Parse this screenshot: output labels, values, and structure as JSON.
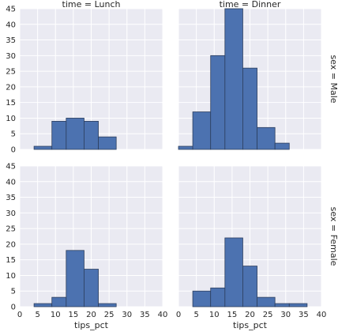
{
  "chart_data": {
    "type": "bar",
    "subtype": "histogram-facet-grid",
    "xlabel": "tips_pct",
    "xlim": [
      0,
      40
    ],
    "ylim": [
      0,
      45
    ],
    "xticks": [
      0,
      5,
      10,
      15,
      20,
      25,
      30,
      35,
      40
    ],
    "yticks": [
      0,
      5,
      10,
      15,
      20,
      25,
      30,
      35,
      40,
      45
    ],
    "col_titles": [
      "time = Lunch",
      "time = Dinner"
    ],
    "row_titles": [
      "sex = Male",
      "sex = Female"
    ],
    "bar_color": "#4c72b0",
    "background_color": "#eaeaf2",
    "grid": true,
    "panels": [
      {
        "time": "Lunch",
        "sex": "Male",
        "bins": [
          {
            "x0": 4,
            "x1": 9,
            "count": 1
          },
          {
            "x0": 9,
            "x1": 13,
            "count": 9
          },
          {
            "x0": 13,
            "x1": 18,
            "count": 10
          },
          {
            "x0": 18,
            "x1": 22,
            "count": 9
          },
          {
            "x0": 22,
            "x1": 27,
            "count": 4
          }
        ]
      },
      {
        "time": "Dinner",
        "sex": "Male",
        "bins": [
          {
            "x0": 0,
            "x1": 4,
            "count": 1
          },
          {
            "x0": 4,
            "x1": 9,
            "count": 12
          },
          {
            "x0": 9,
            "x1": 13,
            "count": 30
          },
          {
            "x0": 13,
            "x1": 18,
            "count": 46
          },
          {
            "x0": 18,
            "x1": 22,
            "count": 26
          },
          {
            "x0": 22,
            "x1": 27,
            "count": 7
          },
          {
            "x0": 27,
            "x1": 31,
            "count": 2
          }
        ]
      },
      {
        "time": "Lunch",
        "sex": "Female",
        "bins": [
          {
            "x0": 4,
            "x1": 9,
            "count": 1
          },
          {
            "x0": 9,
            "x1": 13,
            "count": 3
          },
          {
            "x0": 13,
            "x1": 18,
            "count": 18
          },
          {
            "x0": 18,
            "x1": 22,
            "count": 12
          },
          {
            "x0": 22,
            "x1": 27,
            "count": 1
          }
        ]
      },
      {
        "time": "Dinner",
        "sex": "Female",
        "bins": [
          {
            "x0": 4,
            "x1": 9,
            "count": 5
          },
          {
            "x0": 9,
            "x1": 13,
            "count": 6
          },
          {
            "x0": 13,
            "x1": 18,
            "count": 22
          },
          {
            "x0": 18,
            "x1": 22,
            "count": 13
          },
          {
            "x0": 22,
            "x1": 27,
            "count": 3
          },
          {
            "x0": 27,
            "x1": 31,
            "count": 1
          },
          {
            "x0": 31,
            "x1": 36,
            "count": 1
          }
        ]
      }
    ]
  }
}
